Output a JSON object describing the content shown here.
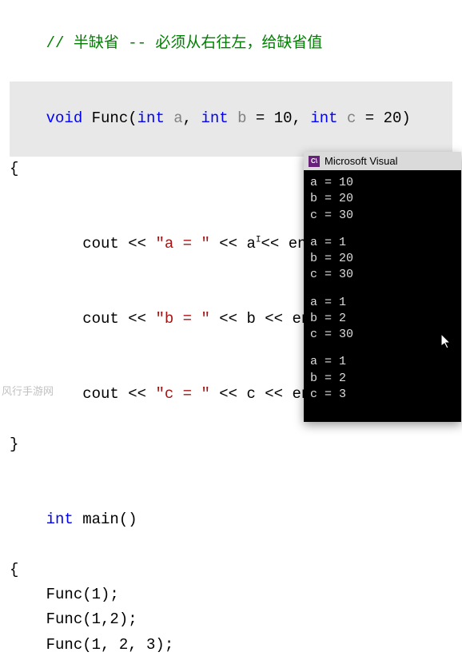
{
  "colors": {
    "comment": "#008000",
    "keyword": "#0000ff",
    "param": "#808080",
    "string": "#a31515",
    "plain": "#000000",
    "console_bg": "#000000",
    "console_text": "#dcdcdc",
    "titlebar_bg": "#dadada",
    "vs_icon_bg": "#68217a",
    "highlight_bg": "#e8e8e8"
  },
  "code": {
    "comment": "// 半缺省 -- 必须从右往左，给缺省值",
    "sig_void": "void",
    "sig_func": " Func(",
    "sig_int1": "int",
    "sig_a": " a",
    "sig_comma1": ", ",
    "sig_int2": "int",
    "sig_b": " b",
    "sig_eq1": " = 10, ",
    "sig_int3": "int",
    "sig_c": " c",
    "sig_eq2": " = 20)",
    "brace_open": "{",
    "cout1_a": "    cout << ",
    "cout1_str": "\"a = \"",
    "cout1_b": " << a",
    "cout1_caret": "I",
    "cout1_c": "<< endl;",
    "cout2_a": "    cout << ",
    "cout2_str": "\"b = \"",
    "cout2_b": " << b << endl;",
    "cout3_a": "    cout << ",
    "cout3_str": "\"c = \"",
    "cout3_b": " << c << endl;",
    "brace_close": "}",
    "main_int": "int",
    "main_name": " main()",
    "main_open": "{",
    "call1": "    Func(1);",
    "call2": "    Func(1,2);",
    "call3": "    Func(1, 2, 3);",
    "main_close": ""
  },
  "console": {
    "title": "Microsoft Visual",
    "icon_label": "C\\",
    "groups": [
      {
        "lines": [
          "a = 10",
          "b = 20",
          "c = 30"
        ]
      },
      {
        "lines": [
          "a = 1",
          "b = 20",
          "c = 30"
        ]
      },
      {
        "lines": [
          "a = 1",
          "b = 2",
          "c = 30"
        ]
      },
      {
        "lines": [
          "a = 1",
          "b = 2",
          "c = 3"
        ]
      }
    ]
  },
  "watermark": "风行手游网"
}
